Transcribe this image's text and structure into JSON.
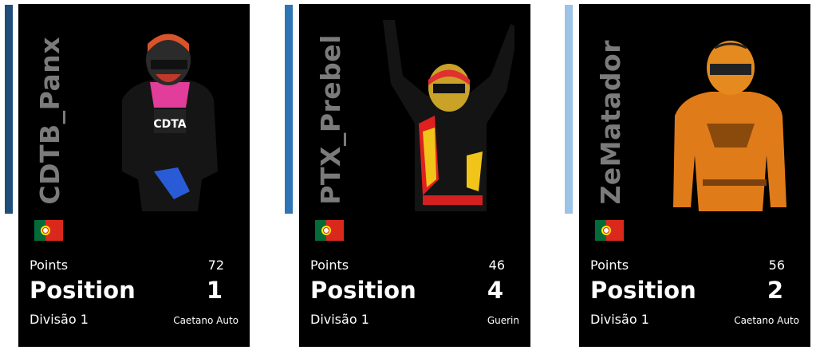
{
  "colors": {
    "bar1": "#1f4e79",
    "bar2": "#2e75b6",
    "bar3": "#9dc3e6",
    "card_bg": "#000000",
    "name_color": "#7b7b7b"
  },
  "cards": [
    {
      "name": "CDTB_Panx",
      "flag_icon": "portugal-flag",
      "points_label": "Points",
      "points": "72",
      "position_label": "Position",
      "position": "1",
      "division": "Divisão 1",
      "team": "Caetano Auto"
    },
    {
      "name": "PTX_Prebel",
      "flag_icon": "portugal-flag",
      "points_label": "Points",
      "points": "46",
      "position_label": "Position",
      "position": "4",
      "division": "Divisão 1",
      "team": "Guerin"
    },
    {
      "name": "ZeMatador",
      "flag_icon": "portugal-flag",
      "points_label": "Points",
      "points": "56",
      "position_label": "Position",
      "position": "2",
      "division": "Divisão 1",
      "team": "Caetano Auto"
    }
  ]
}
